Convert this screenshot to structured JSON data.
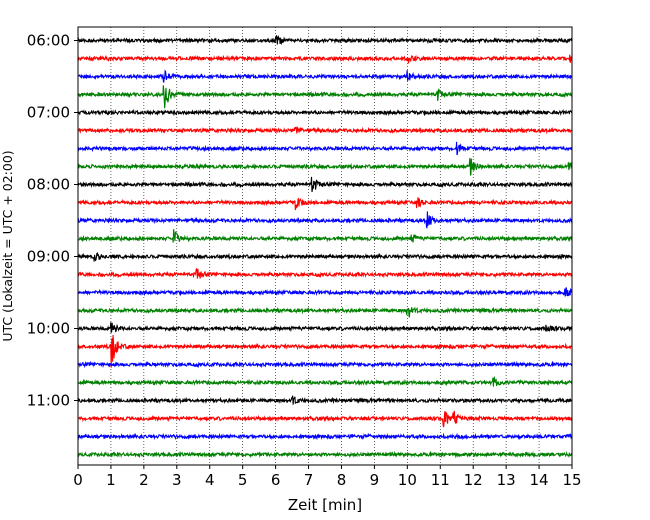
{
  "chart_data": {
    "type": "line",
    "title": "",
    "xlabel": "Zeit  [min]",
    "ylabel": "UTC (Lokalzeit = UTC + 02:00)",
    "xlim": [
      0,
      15
    ],
    "x_ticks": [
      "0",
      "1",
      "2",
      "3",
      "4",
      "5",
      "6",
      "7",
      "8",
      "9",
      "10",
      "11",
      "12",
      "13",
      "14",
      "15"
    ],
    "y_tick_labels": [
      "06:00",
      "07:00",
      "08:00",
      "09:00",
      "10:00",
      "11:00"
    ],
    "grid": "vertical dotted",
    "trace_interval_minutes": 15,
    "color_cycle": [
      "#000000",
      "#ff0000",
      "#0000ff",
      "#008000"
    ],
    "series": [
      {
        "start": "06:00",
        "color": "#000000",
        "events": [
          {
            "t": 6.0,
            "amp": 0.6
          }
        ]
      },
      {
        "start": "06:15",
        "color": "#ff0000",
        "events": [
          {
            "t": 10.0,
            "amp": 0.5
          },
          {
            "t": 14.9,
            "amp": 0.6
          }
        ]
      },
      {
        "start": "06:30",
        "color": "#0000ff",
        "events": [
          {
            "t": 2.6,
            "amp": 0.6
          },
          {
            "t": 10.0,
            "amp": 0.5
          }
        ]
      },
      {
        "start": "06:45",
        "color": "#008000",
        "events": [
          {
            "t": 2.6,
            "amp": 1.8
          },
          {
            "t": 10.9,
            "amp": 0.6
          }
        ]
      },
      {
        "start": "07:00",
        "color": "#000000",
        "events": []
      },
      {
        "start": "07:15",
        "color": "#ff0000",
        "events": [
          {
            "t": 6.6,
            "amp": 0.5
          }
        ]
      },
      {
        "start": "07:30",
        "color": "#0000ff",
        "events": [
          {
            "t": 11.5,
            "amp": 0.6
          }
        ]
      },
      {
        "start": "07:45",
        "color": "#008000",
        "events": [
          {
            "t": 11.9,
            "amp": 0.9
          },
          {
            "t": 14.9,
            "amp": 0.5
          }
        ]
      },
      {
        "start": "08:00",
        "color": "#000000",
        "events": [
          {
            "t": 7.1,
            "amp": 0.9
          }
        ]
      },
      {
        "start": "08:15",
        "color": "#ff0000",
        "events": [
          {
            "t": 6.6,
            "amp": 0.7
          },
          {
            "t": 10.3,
            "amp": 0.5
          }
        ]
      },
      {
        "start": "08:30",
        "color": "#0000ff",
        "events": [
          {
            "t": 10.6,
            "amp": 0.8
          }
        ]
      },
      {
        "start": "08:45",
        "color": "#008000",
        "events": [
          {
            "t": 2.9,
            "amp": 0.9
          },
          {
            "t": 10.1,
            "amp": 0.5
          }
        ]
      },
      {
        "start": "09:00",
        "color": "#000000",
        "events": [
          {
            "t": 0.5,
            "amp": 0.5
          }
        ]
      },
      {
        "start": "09:15",
        "color": "#ff0000",
        "events": [
          {
            "t": 3.6,
            "amp": 0.6
          }
        ]
      },
      {
        "start": "09:30",
        "color": "#0000ff",
        "events": [
          {
            "t": 14.8,
            "amp": 0.5
          }
        ]
      },
      {
        "start": "09:45",
        "color": "#008000",
        "events": [
          {
            "t": 10.0,
            "amp": 0.8
          }
        ]
      },
      {
        "start": "10:00",
        "color": "#000000",
        "events": [
          {
            "t": 1.0,
            "amp": 0.6
          },
          {
            "t": 14.2,
            "amp": 0.5
          }
        ]
      },
      {
        "start": "10:15",
        "color": "#ff0000",
        "events": [
          {
            "t": 1.0,
            "amp": 2.3
          }
        ]
      },
      {
        "start": "10:30",
        "color": "#0000ff",
        "events": []
      },
      {
        "start": "10:45",
        "color": "#008000",
        "events": [
          {
            "t": 12.6,
            "amp": 0.5
          }
        ]
      },
      {
        "start": "11:00",
        "color": "#000000",
        "events": [
          {
            "t": 6.5,
            "amp": 0.5
          }
        ]
      },
      {
        "start": "11:15",
        "color": "#ff0000",
        "events": [
          {
            "t": 11.1,
            "amp": 1.0
          },
          {
            "t": 11.4,
            "amp": 0.7
          }
        ]
      },
      {
        "start": "11:30",
        "color": "#0000ff",
        "events": []
      },
      {
        "start": "11:45",
        "color": "#008000",
        "events": []
      }
    ]
  }
}
